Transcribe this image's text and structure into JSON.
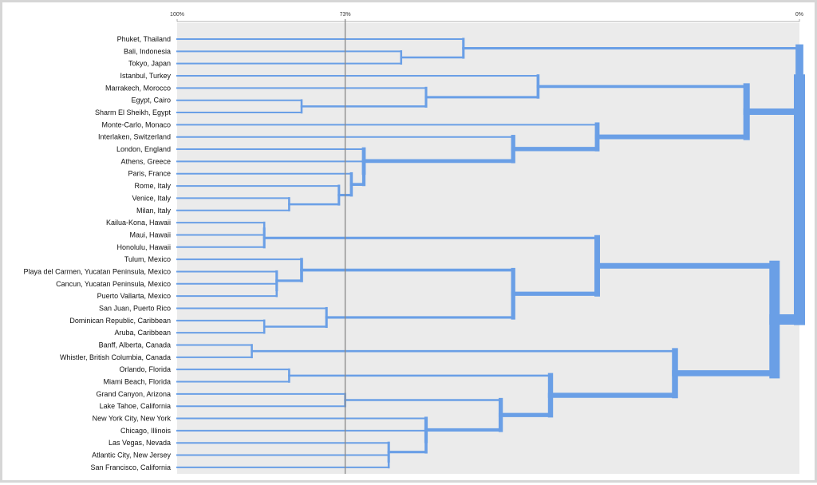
{
  "scale": {
    "left": "100%",
    "threshold": "73%",
    "right": "0%"
  },
  "threshold_pct": 73,
  "colors": {
    "link": "#6a9fe6",
    "plot_bg": "#ebebeb",
    "cutline": "#888888",
    "axis": "#999999"
  },
  "leaves": [
    "Phuket, Thailand",
    "Bali, Indonesia",
    "Tokyo, Japan",
    "Istanbul, Turkey",
    "Marrakech, Morocco",
    "Egypt, Cairo",
    "Sharm El Sheikh, Egypt",
    "Monte-Carlo, Monaco",
    "Interlaken, Switzerland",
    "London, England",
    "Athens, Greece",
    "Paris, France",
    "Rome, Italy",
    "Venice, Italy",
    "Milan, Italy",
    "Kailua-Kona, Hawaii",
    "Maui, Hawaii",
    "Honolulu, Hawaii",
    "Tulum, Mexico",
    "Playa del Carmen, Yucatan Peninsula, Mexico",
    "Cancun, Yucatan Peninsula, Mexico",
    "Puerto Vallarta, Mexico",
    "San Juan, Puerto Rico",
    "Dominican Republic, Caribbean",
    "Aruba, Caribbean",
    "Banff, Alberta, Canada",
    "Whistler, British Columbia, Canada",
    "Orlando, Florida",
    "Miami Beach, Florida",
    "Grand Canyon, Arizona",
    "Lake Tahoe, California",
    "New York City, New York",
    "Chicago, Illinois",
    "Las Vegas, Nevada",
    "Atlantic City, New Jersey",
    "San Francisco, California"
  ],
  "merges": [
    {
      "a": 1,
      "b": 2,
      "level": 64
    },
    {
      "a": 0,
      "b": 36,
      "level": 54
    },
    {
      "a": 5,
      "b": 6,
      "level": 80
    },
    {
      "a": 4,
      "b": 38,
      "level": 60
    },
    {
      "a": 3,
      "b": 39,
      "level": 42
    },
    {
      "a": 13,
      "b": 14,
      "level": 82
    },
    {
      "a": 12,
      "b": 41,
      "level": 74
    },
    {
      "a": 11,
      "b": 42,
      "level": 72
    },
    {
      "a": 10,
      "b": 43,
      "level": 70
    },
    {
      "a": 9,
      "b": 44,
      "level": 70
    },
    {
      "a": 8,
      "b": 45,
      "level": 46
    },
    {
      "a": 7,
      "b": 46,
      "level": 32.5
    },
    {
      "a": 40,
      "b": 47,
      "level": 8.5
    },
    {
      "a": 37,
      "b": 48,
      "level": 0
    },
    {
      "a": 15,
      "b": 16,
      "level": 86
    },
    {
      "a": 50,
      "b": 17,
      "level": 86
    },
    {
      "a": 20,
      "b": 21,
      "level": 84
    },
    {
      "a": 19,
      "b": 52,
      "level": 84
    },
    {
      "a": 18,
      "b": 53,
      "level": 80
    },
    {
      "a": 23,
      "b": 24,
      "level": 86
    },
    {
      "a": 22,
      "b": 55,
      "level": 76
    },
    {
      "a": 54,
      "b": 56,
      "level": 46
    },
    {
      "a": 51,
      "b": 57,
      "level": 32.5
    },
    {
      "a": 25,
      "b": 26,
      "level": 88
    },
    {
      "a": 27,
      "b": 28,
      "level": 82
    },
    {
      "a": 29,
      "b": 30,
      "level": 73
    },
    {
      "a": 34,
      "b": 35,
      "level": 66
    },
    {
      "a": 33,
      "b": 62,
      "level": 66
    },
    {
      "a": 32,
      "b": 63,
      "level": 60
    },
    {
      "a": 31,
      "b": 64,
      "level": 60
    },
    {
      "a": 61,
      "b": 65,
      "level": 48
    },
    {
      "a": 60,
      "b": 66,
      "level": 40
    },
    {
      "a": 59,
      "b": 67,
      "level": 20
    },
    {
      "a": 58,
      "b": 68,
      "level": 4
    },
    {
      "a": 49,
      "b": 69,
      "level": 0
    }
  ]
}
